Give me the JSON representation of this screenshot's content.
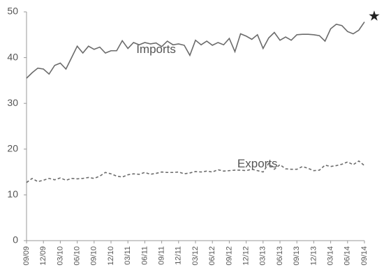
{
  "chart_data": {
    "type": "line",
    "annotation": "★",
    "categories": [
      "09/09",
      null,
      null,
      "12/09",
      null,
      null,
      "03/10",
      null,
      null,
      "06/10",
      null,
      null,
      "09/10",
      null,
      null,
      "12/10",
      null,
      null,
      "03/11",
      null,
      null,
      "06/11",
      null,
      null,
      "09/11",
      null,
      null,
      "12/11",
      null,
      null,
      "03/12",
      null,
      null,
      "06/12",
      null,
      null,
      "09/12",
      null,
      null,
      "12/12",
      null,
      null,
      "03/13",
      null,
      null,
      "06/13",
      null,
      null,
      "09/13",
      null,
      null,
      "12/13",
      null,
      null,
      "03/14",
      null,
      null,
      "06/14",
      null,
      null,
      "09/14"
    ],
    "series": [
      {
        "name": "Imports",
        "color": "#6b6b6b",
        "dash": false,
        "values": [
          35.5,
          36.7,
          37.7,
          37.5,
          36.4,
          38.3,
          38.8,
          37.5,
          40.0,
          42.5,
          41.0,
          42.5,
          41.8,
          42.3,
          41.0,
          41.5,
          41.5,
          43.7,
          42.0,
          43.3,
          42.8,
          43.3,
          43.0,
          43.2,
          42.4,
          43.6,
          42.8,
          43.0,
          42.7,
          40.5,
          43.8,
          42.8,
          43.6,
          42.7,
          43.3,
          42.8,
          44.2,
          41.3,
          45.2,
          44.7,
          44.0,
          45.0,
          42.0,
          44.3,
          45.5,
          43.8,
          44.5,
          43.8,
          45.0,
          45.1,
          45.1,
          45.0,
          44.8,
          43.6,
          46.3,
          47.3,
          47.0,
          45.7,
          45.2,
          46.0,
          47.8
        ]
      },
      {
        "name": "Exports",
        "color": "#6b6b6b",
        "dash": true,
        "values": [
          12.7,
          13.6,
          12.9,
          13.2,
          13.6,
          13.3,
          13.7,
          13.2,
          13.6,
          13.5,
          13.6,
          13.8,
          13.6,
          14.1,
          14.9,
          14.6,
          14.1,
          13.9,
          14.4,
          14.6,
          14.5,
          14.9,
          14.5,
          14.7,
          15.0,
          14.9,
          14.9,
          15.0,
          14.6,
          14.8,
          15.1,
          15.0,
          15.2,
          15.0,
          15.5,
          15.2,
          15.3,
          15.4,
          15.4,
          15.3,
          15.6,
          15.3,
          15.0,
          16.9,
          15.6,
          16.6,
          15.7,
          15.6,
          15.6,
          16.2,
          15.8,
          15.3,
          15.4,
          16.5,
          16.2,
          16.4,
          16.7,
          17.2,
          16.6,
          17.4,
          16.4
        ]
      }
    ],
    "ylim": [
      0,
      50
    ],
    "yticks": [
      0,
      10,
      20,
      30,
      40,
      50
    ],
    "grid": false
  }
}
